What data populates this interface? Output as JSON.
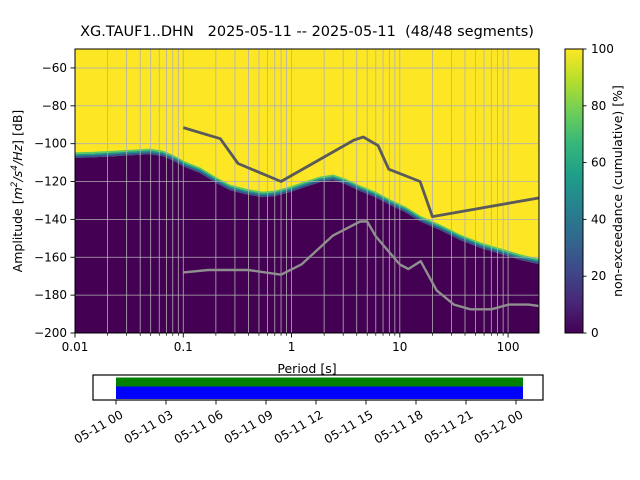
{
  "title": "XG.TAUF1..DHN   2025-05-11 -- 2025-05-11  (48/48 segments)",
  "axes": {
    "xlabel": "Period [s]",
    "ylabel_plain": "Amplitude [m2/s4/Hz] [dB]",
    "ylabel_parts": [
      {
        "t": "Amplitude [",
        "i": false,
        "sup": false
      },
      {
        "t": "m",
        "i": true,
        "sup": false
      },
      {
        "t": "2",
        "i": true,
        "sup": true
      },
      {
        "t": "/",
        "i": true,
        "sup": false
      },
      {
        "t": "s",
        "i": true,
        "sup": false
      },
      {
        "t": "4",
        "i": true,
        "sup": true
      },
      {
        "t": "/",
        "i": true,
        "sup": false
      },
      {
        "t": "Hz",
        "i": true,
        "sup": false
      },
      {
        "t": "] [dB]",
        "i": false,
        "sup": false
      }
    ],
    "x_tick_labels": [
      "0.01",
      "0.1",
      "1",
      "10",
      "100"
    ],
    "x_tick_values": [
      0.01,
      0.1,
      1,
      10,
      100
    ],
    "y_tick_labels": [
      "−60",
      "−80",
      "−100",
      "−120",
      "−140",
      "−160",
      "−180",
      "−200"
    ],
    "y_tick_values": [
      -60,
      -80,
      -100,
      -120,
      -140,
      -160,
      -180,
      -200
    ]
  },
  "colorbar": {
    "label": "non-exceedance (cumulative) [%]",
    "tick_labels": [
      "0",
      "20",
      "40",
      "60",
      "80",
      "100"
    ],
    "tick_values": [
      0,
      20,
      40,
      60,
      80,
      100
    ],
    "colormap": "viridis",
    "stops": [
      [
        0,
        "#440154"
      ],
      [
        0.111,
        "#482878"
      ],
      [
        0.222,
        "#3e4989"
      ],
      [
        0.333,
        "#31688e"
      ],
      [
        0.444,
        "#26828e"
      ],
      [
        0.556,
        "#1f9e89"
      ],
      [
        0.667,
        "#35b779"
      ],
      [
        0.778,
        "#6ece58"
      ],
      [
        0.889,
        "#b5de2b"
      ],
      [
        1,
        "#fde725"
      ]
    ]
  },
  "timeline": {
    "tick_labels": [
      "05-11 00",
      "05-11 03",
      "05-11 06",
      "05-11 09",
      "05-11 12",
      "05-11 15",
      "05-11 18",
      "05-11 21",
      "05-12 00"
    ],
    "green_bar_color": "#008000",
    "blue_bar_color": "#0000ff"
  },
  "chart_data": {
    "type": "heatmap",
    "title": "XG.TAUF1..DHN   2025-05-11 -- 2025-05-11  (48/48 segments)",
    "xlabel": "Period [s]",
    "ylabel": "Amplitude [m2/s4/Hz] [dB]",
    "xscale": "log",
    "xlim": [
      0.01,
      193
    ],
    "ylim": [
      -200,
      -50
    ],
    "grid": true,
    "colormap": "viridis",
    "value_label": "non-exceedance (cumulative) [%]",
    "value_range": [
      0,
      100
    ],
    "description": "Cumulative PPSD: yellow = 100% non-exceedance above the PSD distribution, dark purple = 0% below it; a narrow green/teal/blue band marks the transition. Gray lines are Peterson NHNM (dark) and NLNM (light) noise models.",
    "colors": {
      "high_100pct": "#fde725",
      "low_0pct": "#440154",
      "band_green": "#5ec962",
      "band_teal": "#21918c",
      "band_blue": "#3a528b",
      "grid": "#b0b0b0",
      "nhnm_line": "#5a5a5a",
      "nlnm_line": "#8f8f8f"
    },
    "cumulative_transition_curve": {
      "period_s": [
        0.01,
        0.015,
        0.023,
        0.036,
        0.049,
        0.064,
        0.079,
        0.104,
        0.143,
        0.196,
        0.269,
        0.37,
        0.533,
        0.702,
        0.966,
        1.33,
        1.83,
        2.42,
        3.12,
        4.29,
        5.92,
        8.15,
        11.2,
        15.4,
        23.5,
        36.1,
        55.6,
        85.6,
        131.8,
        193.0
      ],
      "db": [
        -107.5,
        -107.2,
        -106.6,
        -106.0,
        -105.5,
        -106.5,
        -108.7,
        -112.4,
        -115.5,
        -120.3,
        -124.5,
        -126.6,
        -128.2,
        -127.7,
        -125.6,
        -122.9,
        -120.3,
        -119.2,
        -121.3,
        -125.0,
        -128.2,
        -132.4,
        -136.1,
        -141.0,
        -145.6,
        -150.9,
        -155.1,
        -158.3,
        -161.5,
        -163.6
      ]
    },
    "noise_models": {
      "nhnm": {
        "name": "Peterson New High Noise Model",
        "period_s": [
          0.1,
          0.22,
          0.32,
          0.8,
          3.8,
          4.6,
          6.3,
          7.9,
          15.4,
          20.0,
          354.8
        ],
        "db": [
          -91.5,
          -97.4,
          -110.5,
          -120.0,
          -98.0,
          -96.5,
          -101.0,
          -113.5,
          -120.0,
          -138.5,
          -126.0
        ]
      },
      "nlnm": {
        "name": "Peterson New Low Noise Model",
        "period_s": [
          0.1,
          0.17,
          0.4,
          0.8,
          1.24,
          2.4,
          4.3,
          5.0,
          6.0,
          10.0,
          12.0,
          15.6,
          21.9,
          31.6,
          45.0,
          70.0,
          101.0,
          154.0,
          328.0
        ],
        "db": [
          -168.0,
          -166.7,
          -166.7,
          -169.2,
          -163.7,
          -148.6,
          -141.1,
          -141.1,
          -149.0,
          -163.8,
          -166.2,
          -162.1,
          -177.5,
          -185.0,
          -187.5,
          -187.5,
          -185.0,
          -185.0,
          -187.5
        ]
      }
    },
    "coverage_timeline": {
      "tick_labels": [
        "05-11 00",
        "05-11 03",
        "05-11 06",
        "05-11 09",
        "05-11 12",
        "05-11 15",
        "05-11 18",
        "05-11 21",
        "05-12 00"
      ],
      "coverage_start": "05-11 00",
      "coverage_end_past_last_tick": true
    }
  }
}
